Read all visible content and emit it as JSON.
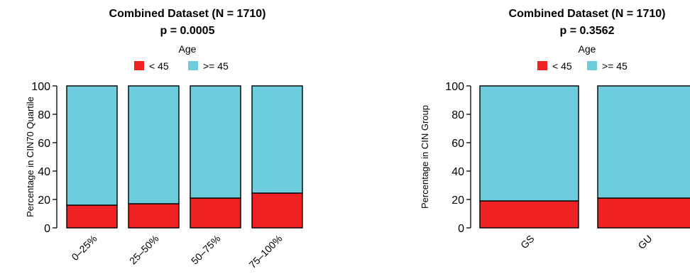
{
  "chart_data": [
    {
      "type": "bar",
      "stacked": true,
      "title": "Combined Dataset (N = 1710)",
      "subtitle": "p = 0.0005",
      "legend_title": "Age",
      "legend_position": "top",
      "xlabel": "",
      "ylabel": "Percentage in CIN70 Quartile",
      "ylim": [
        0,
        100
      ],
      "yticks": [
        0,
        20,
        40,
        60,
        80,
        100
      ],
      "categories": [
        "0–25%",
        "25–50%",
        "50–75%",
        "75–100%"
      ],
      "grid": false,
      "series": [
        {
          "name": "< 45",
          "color": "#EE2222",
          "values": [
            16,
            17,
            21,
            24.5
          ]
        },
        {
          "name": ">= 45",
          "color": "#6DCDDC",
          "values": [
            84,
            83,
            79,
            75.5
          ]
        }
      ]
    },
    {
      "type": "bar",
      "stacked": true,
      "title": "Combined Dataset (N = 1710)",
      "subtitle": "p = 0.3562",
      "legend_title": "Age",
      "legend_position": "top",
      "xlabel": "",
      "ylabel": "Percentage in CIN Group",
      "ylim": [
        0,
        100
      ],
      "yticks": [
        0,
        20,
        40,
        60,
        80,
        100
      ],
      "categories": [
        "GS",
        "GU"
      ],
      "grid": false,
      "series": [
        {
          "name": "< 45",
          "color": "#EE2222",
          "values": [
            19,
            21
          ]
        },
        {
          "name": ">= 45",
          "color": "#6DCDDC",
          "values": [
            81,
            79
          ]
        }
      ]
    }
  ]
}
